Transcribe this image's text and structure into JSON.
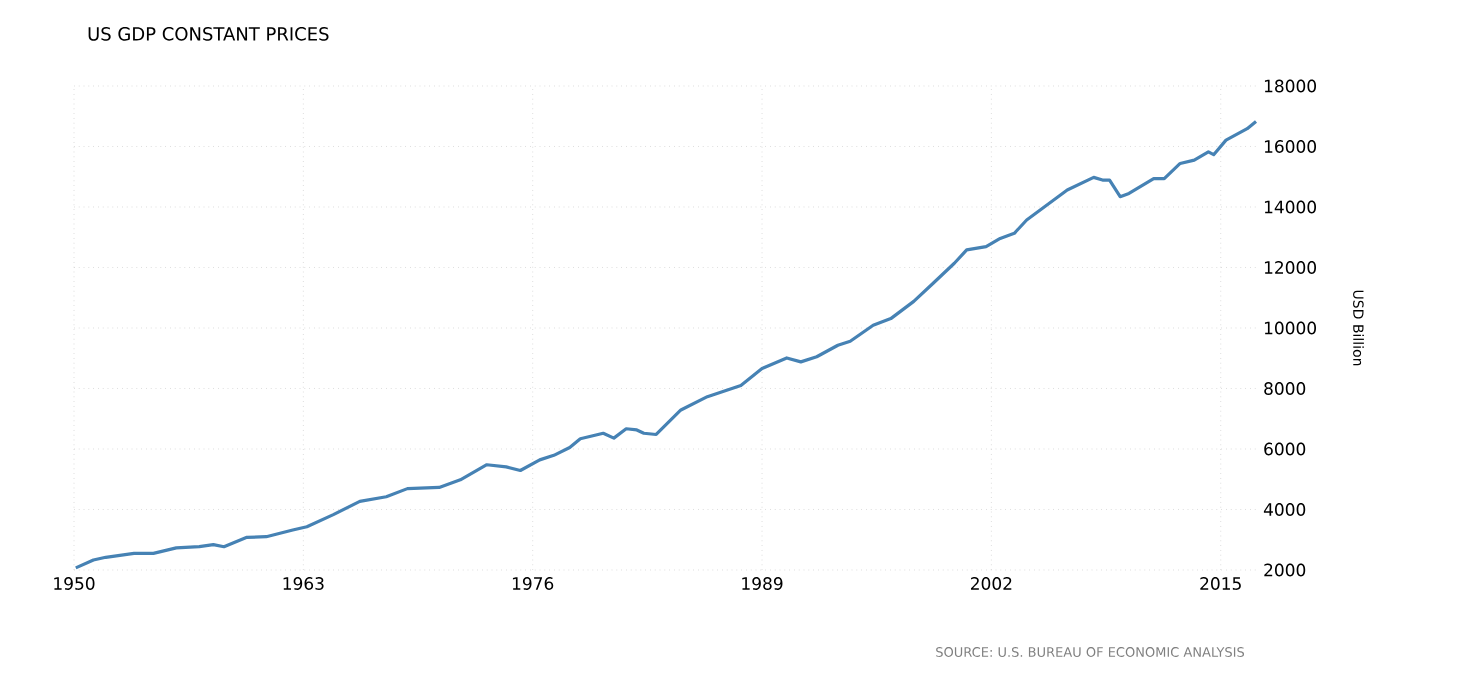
{
  "chart_data": {
    "type": "line",
    "title": "US GDP CONSTANT PRICES",
    "y2label": "USD Billion",
    "annotations": [
      "SOURCE: U.S. BUREAU OF ECONOMIC ANALYSIS"
    ],
    "series": [
      {
        "color": "#4682b4",
        "x": [
          1950.1,
          1951.1,
          1951.8,
          1953.4,
          1954.5,
          1955.8,
          1957.1,
          1957.9,
          1958.5,
          1959.8,
          1960.9,
          1962.4,
          1963.2,
          1964.7,
          1966.2,
          1967.7,
          1968.9,
          1970.7,
          1971.9,
          1973.4,
          1974.5,
          1975.3,
          1976.4,
          1977.2,
          1978.1,
          1978.7,
          1980.0,
          1980.6,
          1981.3,
          1981.9,
          1982.3,
          1983.0,
          1984.4,
          1985.9,
          1987.8,
          1989.0,
          1990.4,
          1991.2,
          1992.1,
          1993.3,
          1994.0,
          1995.3,
          1996.3,
          1997.6,
          1998.7,
          1999.9,
          2000.6,
          2001.7,
          2002.5,
          2003.3,
          2004.0,
          2006.3,
          2007.8,
          2008.3,
          2008.7,
          2009.3,
          2009.8,
          2011.2,
          2011.8,
          2012.7,
          2013.5,
          2014.3,
          2014.6,
          2015.3,
          2016.5,
          2017.0
        ],
        "values": [
          2070,
          2330,
          2420,
          2550,
          2550,
          2730,
          2770,
          2840,
          2770,
          3080,
          3100,
          3320,
          3430,
          3830,
          4270,
          4420,
          4690,
          4730,
          4980,
          5480,
          5410,
          5290,
          5640,
          5790,
          6050,
          6340,
          6520,
          6360,
          6670,
          6630,
          6520,
          6480,
          7290,
          7730,
          8100,
          8660,
          9010,
          8880,
          9050,
          9430,
          9560,
          10090,
          10310,
          10880,
          11480,
          12140,
          12580,
          12690,
          12960,
          13130,
          13570,
          14560,
          14980,
          14890,
          14890,
          14340,
          14450,
          14940,
          14940,
          15440,
          15550,
          15820,
          15730,
          16210,
          16590,
          16830
        ]
      }
    ],
    "xlim": [
      1950,
      2017
    ],
    "xticks": [
      1950,
      1963,
      1976,
      1989,
      2002,
      2015
    ],
    "ylim": [
      2000,
      18000
    ],
    "yticks": [
      2000,
      4000,
      6000,
      8000,
      10000,
      12000,
      14000,
      16000,
      18000
    ],
    "grid": true,
    "line_style": "solid",
    "marker": "none"
  }
}
